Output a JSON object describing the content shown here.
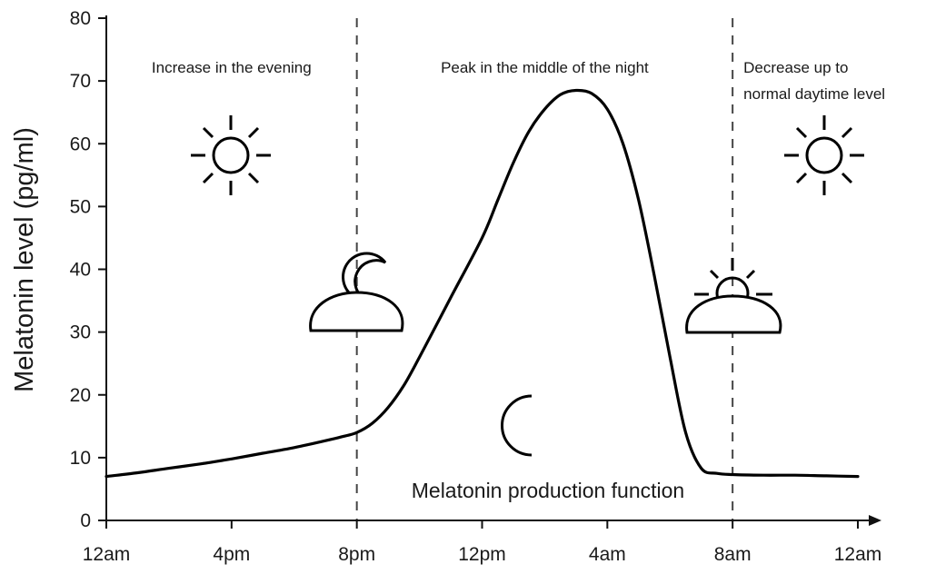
{
  "chart_data": {
    "type": "line",
    "ylabel": "Melatonin level (pg/ml)",
    "ylim": [
      0,
      80
    ],
    "y_ticks": [
      "0",
      "10",
      "20",
      "30",
      "40",
      "50",
      "60",
      "70",
      "80"
    ],
    "x_ticks": [
      "12am",
      "4pm",
      "8pm",
      "12pm",
      "4am",
      "8am",
      "12am"
    ],
    "x_unit": "hours",
    "xlim": [
      0,
      24
    ],
    "dividers": [
      8,
      20
    ],
    "regions": [
      {
        "lines": [
          "Increase in the evening"
        ]
      },
      {
        "lines": [
          "Peak in the middle of the night"
        ]
      },
      {
        "lines": [
          "Decrease up to",
          "normal daytime level"
        ]
      }
    ],
    "series": [
      {
        "name": "Melatonin production function",
        "x": [
          0,
          1,
          2,
          3,
          4,
          5,
          6,
          7,
          7.5,
          8,
          8.5,
          9,
          9.5,
          10,
          11,
          12,
          12.5,
          13,
          13.5,
          14,
          14.5,
          15,
          15.5,
          16,
          16.5,
          17,
          17.5,
          18,
          18.5,
          19,
          19.5,
          20,
          21,
          22,
          23,
          24
        ],
        "values": [
          7,
          7.6,
          8.3,
          9,
          9.8,
          10.7,
          11.6,
          12.7,
          13.3,
          14,
          15.5,
          18,
          21.5,
          26,
          35.5,
          45,
          51,
          57,
          62,
          65.5,
          67.8,
          68.5,
          68,
          65.5,
          60,
          51,
          39,
          26,
          14,
          8.3,
          7.5,
          7.3,
          7.2,
          7.2,
          7.1,
          7
        ]
      }
    ],
    "icons": [
      "sun-icon",
      "moon-behind-cloud-icon",
      "crescent-moon-icon",
      "sun-rising-behind-cloud-icon",
      "sun-icon"
    ],
    "grid": false,
    "legend": "none"
  }
}
